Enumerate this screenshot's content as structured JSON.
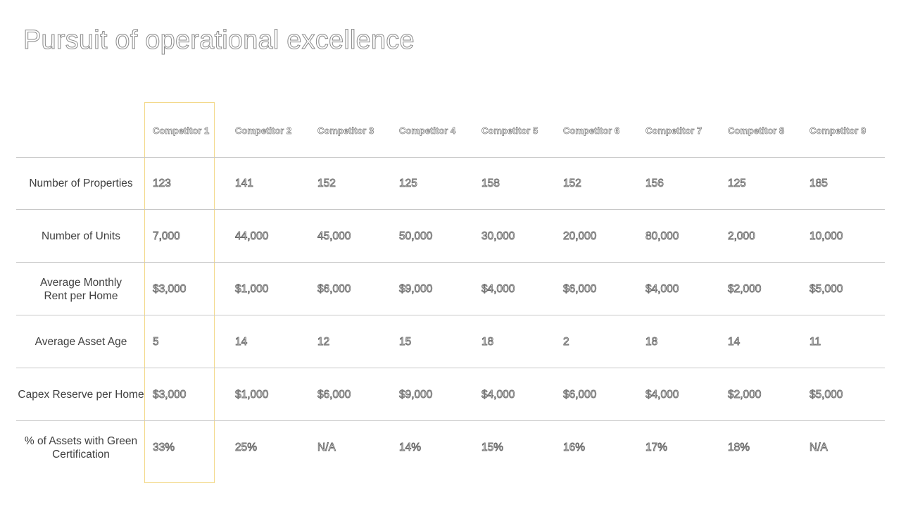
{
  "title": "Pursuit of operational excellence",
  "competitors": [
    "Competitor 1",
    "Competitor 2",
    "Competitor 3",
    "Competitor 4",
    "Competitor 5",
    "Competitor 6",
    "Competitor 7",
    "Competitor 8",
    "Competitor 9"
  ],
  "rows": [
    {
      "label": "Number of Properties",
      "values": [
        "123",
        "141",
        "152",
        "125",
        "158",
        "152",
        "156",
        "125",
        "185"
      ]
    },
    {
      "label": "Number of Units",
      "values": [
        "7,000",
        "44,000",
        "45,000",
        "50,000",
        "30,000",
        "20,000",
        "80,000",
        "2,000",
        "10,000"
      ]
    },
    {
      "label": "Average Monthly\nRent per Home",
      "values": [
        "$3,000",
        "$1,000",
        "$6,000",
        "$9,000",
        "$4,000",
        "$6,000",
        "$4,000",
        "$2,000",
        "$5,000"
      ]
    },
    {
      "label": "Average Asset Age",
      "values": [
        "5",
        "14",
        "12",
        "15",
        "18",
        "2",
        "18",
        "14",
        "11"
      ]
    },
    {
      "label": "Capex Reserve  per Home",
      "values": [
        "$3,000",
        "$1,000",
        "$6,000",
        "$9,000",
        "$4,000",
        "$6,000",
        "$4,000",
        "$2,000",
        "$5,000"
      ]
    },
    {
      "label": "% of Assets with  Green\nCertification",
      "values": [
        "33%",
        "25%",
        "N/A",
        "14%",
        "15%",
        "16%",
        "17%",
        "18%",
        "N/A"
      ]
    }
  ],
  "colors": {
    "highlight_border": "#f3d98a",
    "rule": "#c8c8c8",
    "label_text": "#3f3f3f"
  }
}
